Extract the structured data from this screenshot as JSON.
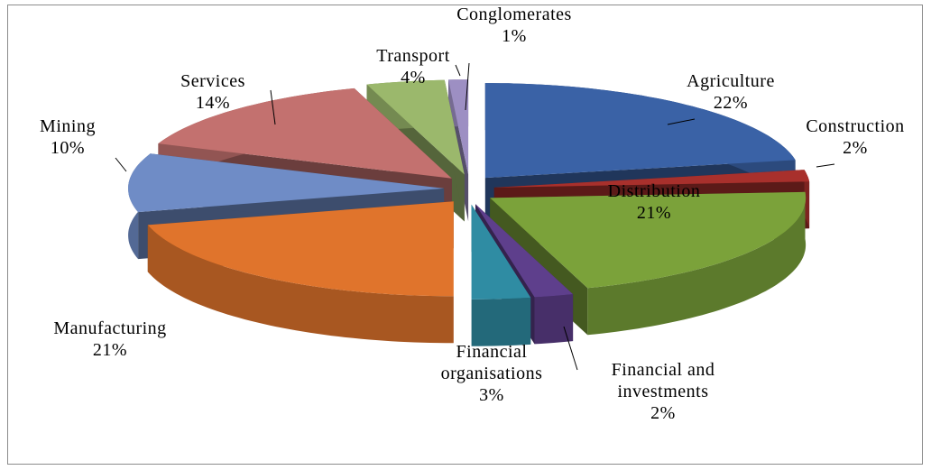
{
  "chart_data": {
    "type": "pie",
    "categories": [
      "Agriculture",
      "Construction",
      "Distribution",
      "Financial and investments",
      "Financial organisations",
      "Manufacturing",
      "Mining",
      "Services",
      "Transport",
      "Conglomerates"
    ],
    "values": [
      22,
      2,
      21,
      2,
      3,
      21,
      10,
      14,
      4,
      1
    ],
    "value_labels": [
      "22%",
      "2%",
      "21%",
      "2%",
      "3%",
      "21%",
      "10%",
      "14%",
      "4%",
      "1%"
    ],
    "colors": [
      "#3a62a6",
      "#a8302c",
      "#7ba23a",
      "#5e3f8c",
      "#2f8ca3",
      "#e0742c",
      "#6f8cc6",
      "#c3716f",
      "#9bb86c",
      "#9d8fc3"
    ]
  }
}
